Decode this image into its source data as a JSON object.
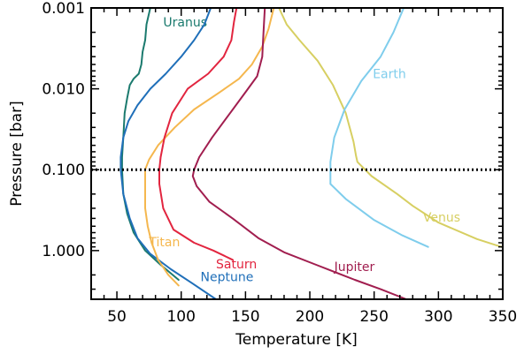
{
  "chart_data": {
    "type": "line",
    "title": "",
    "xlabel": "Temperature [K]",
    "ylabel": "Pressure [bar]",
    "xlim": [
      30,
      350
    ],
    "ylim": [
      0.001,
      4.0
    ],
    "y_scale": "log",
    "y_inverted": true,
    "x_ticks": [
      50,
      100,
      150,
      200,
      250,
      300,
      350
    ],
    "x_tick_labels": [
      "50",
      "100",
      "150",
      "200",
      "250",
      "300",
      "350"
    ],
    "y_ticks": [
      0.001,
      0.01,
      0.1,
      1.0
    ],
    "y_tick_labels": [
      "0.001",
      "0.010",
      "0.100",
      "1.000"
    ],
    "reference_line": {
      "y": 0.1,
      "style": "dotted"
    },
    "grid": false,
    "series": [
      {
        "name": "Uranus",
        "color": "#1b7a6e",
        "points": [
          [
            76,
            0.001
          ],
          [
            73,
            0.0016
          ],
          [
            72,
            0.0025
          ],
          [
            70,
            0.0035
          ],
          [
            69,
            0.005
          ],
          [
            67,
            0.0065
          ],
          [
            63,
            0.0075
          ],
          [
            60,
            0.009
          ],
          [
            58,
            0.013
          ],
          [
            56,
            0.02
          ],
          [
            55,
            0.04
          ],
          [
            54,
            0.07
          ],
          [
            54,
            0.1
          ],
          [
            55,
            0.2
          ],
          [
            58,
            0.35
          ],
          [
            63,
            0.6
          ],
          [
            72,
            1.0
          ],
          [
            84,
            1.5
          ],
          [
            98,
            2.3
          ]
        ],
        "label_at": [
          86,
          0.0017
        ]
      },
      {
        "name": "Neptune",
        "color": "#1f6fb9",
        "points": [
          [
            123,
            0.001
          ],
          [
            118,
            0.0016
          ],
          [
            110,
            0.0025
          ],
          [
            100,
            0.004
          ],
          [
            88,
            0.0065
          ],
          [
            76,
            0.01
          ],
          [
            66,
            0.016
          ],
          [
            59,
            0.025
          ],
          [
            55,
            0.04
          ],
          [
            53,
            0.07
          ],
          [
            53,
            0.1
          ],
          [
            55,
            0.2
          ],
          [
            60,
            0.4
          ],
          [
            66,
            0.7
          ],
          [
            76,
            1.1
          ],
          [
            92,
            1.7
          ],
          [
            108,
            2.5
          ],
          [
            127,
            4.0
          ]
        ],
        "label_at": [
          115,
          2.4
        ]
      },
      {
        "name": "Titan",
        "color": "#f5b74e",
        "points": [
          [
            172,
            0.001
          ],
          [
            168,
            0.0018
          ],
          [
            163,
            0.003
          ],
          [
            155,
            0.005
          ],
          [
            145,
            0.0075
          ],
          [
            130,
            0.011
          ],
          [
            110,
            0.018
          ],
          [
            95,
            0.03
          ],
          [
            82,
            0.05
          ],
          [
            75,
            0.075
          ],
          [
            72,
            0.1
          ],
          [
            72,
            0.17
          ],
          [
            72,
            0.3
          ],
          [
            74,
            0.5
          ],
          [
            77,
            0.8
          ],
          [
            82,
            1.3
          ],
          [
            90,
            2.0
          ],
          [
            98,
            2.7
          ]
        ],
        "label_at": [
          75,
          0.88
        ]
      },
      {
        "name": "Saturn",
        "color": "#e2253f",
        "points": [
          [
            143,
            0.001
          ],
          [
            141,
            0.0015
          ],
          [
            139,
            0.0025
          ],
          [
            133,
            0.004
          ],
          [
            121,
            0.0065
          ],
          [
            105,
            0.01
          ],
          [
            93,
            0.02
          ],
          [
            87,
            0.04
          ],
          [
            84,
            0.07
          ],
          [
            83,
            0.1
          ],
          [
            83,
            0.15
          ],
          [
            86,
            0.3
          ],
          [
            94,
            0.55
          ],
          [
            110,
            0.8
          ],
          [
            125,
            1.0
          ],
          [
            140,
            1.3
          ]
        ],
        "label_at": [
          127,
          1.65
        ]
      },
      {
        "name": "Jupiter",
        "color": "#a11e4f",
        "points": [
          [
            165,
            0.001
          ],
          [
            164,
            0.002
          ],
          [
            163,
            0.004
          ],
          [
            159,
            0.007
          ],
          [
            150,
            0.011
          ],
          [
            138,
            0.02
          ],
          [
            124,
            0.04
          ],
          [
            114,
            0.07
          ],
          [
            110,
            0.1
          ],
          [
            109,
            0.12
          ],
          [
            112,
            0.16
          ],
          [
            122,
            0.25
          ],
          [
            140,
            0.4
          ],
          [
            160,
            0.7
          ],
          [
            180,
            1.05
          ],
          [
            205,
            1.5
          ],
          [
            235,
            2.3
          ],
          [
            255,
            3.0
          ],
          [
            275,
            4.0
          ]
        ],
        "label_at": [
          219,
          1.8
        ]
      },
      {
        "name": "Venus",
        "color": "#d7cf62",
        "points": [
          [
            176,
            0.001
          ],
          [
            182,
            0.0016
          ],
          [
            192,
            0.0025
          ],
          [
            206,
            0.0045
          ],
          [
            218,
            0.009
          ],
          [
            228,
            0.02
          ],
          [
            234,
            0.045
          ],
          [
            236,
            0.068
          ],
          [
            237,
            0.08
          ],
          [
            248,
            0.12
          ],
          [
            268,
            0.2
          ],
          [
            280,
            0.28
          ],
          [
            300,
            0.45
          ],
          [
            330,
            0.72
          ],
          [
            349,
            0.9
          ]
        ],
        "label_at": [
          288,
          0.44
        ]
      },
      {
        "name": "Earth",
        "color": "#7fcdec",
        "points": [
          [
            273,
            0.001
          ],
          [
            265,
            0.002
          ],
          [
            255,
            0.004
          ],
          [
            240,
            0.008
          ],
          [
            227,
            0.018
          ],
          [
            219,
            0.04
          ],
          [
            216,
            0.08
          ],
          [
            216,
            0.1
          ],
          [
            216,
            0.12
          ],
          [
            216,
            0.15
          ],
          [
            228,
            0.23
          ],
          [
            250,
            0.42
          ],
          [
            272,
            0.65
          ],
          [
            292,
            0.9
          ]
        ],
        "label_at": [
          249,
          0.0074
        ]
      }
    ]
  }
}
